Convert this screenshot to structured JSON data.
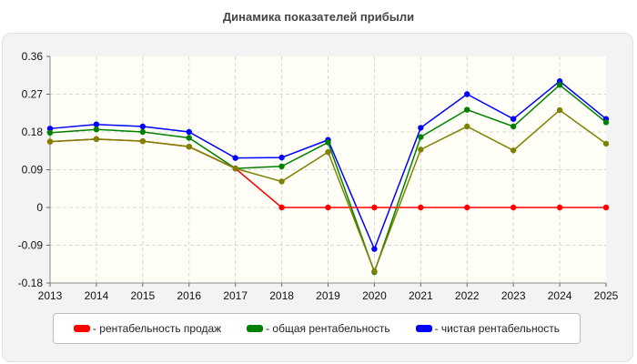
{
  "chart_data": {
    "type": "line",
    "title": "Динамика показателей прибыли",
    "x": [
      "2013",
      "2014",
      "2015",
      "2016",
      "2017",
      "2018",
      "2019",
      "2020",
      "2021",
      "2022",
      "2023",
      "2024",
      "2025"
    ],
    "ylim": [
      -0.18,
      0.36
    ],
    "yticks": [
      "0.36",
      "0.27",
      "0.18",
      "0.09",
      "0",
      "-0.09",
      "-0.18"
    ],
    "grid": true,
    "legend_placement": "bottom",
    "series": [
      {
        "name": "рентабельность продаж",
        "color": "#ff0000",
        "values": [
          0.157,
          0.163,
          0.158,
          0.145,
          0.093,
          0,
          0,
          0,
          0,
          0,
          0,
          0,
          0
        ]
      },
      {
        "name": "общая рентабельность",
        "color": "#008000",
        "values": [
          0.178,
          0.186,
          0.18,
          0.166,
          0.093,
          0.098,
          0.155,
          -0.154,
          0.168,
          0.233,
          0.193,
          0.292,
          0.203
        ]
      },
      {
        "name": "чистая рентабельность",
        "color": "#0000ff",
        "values": [
          0.188,
          0.198,
          0.193,
          0.18,
          0.118,
          0.119,
          0.161,
          -0.099,
          0.19,
          0.27,
          0.211,
          0.301,
          0.211
        ]
      }
    ],
    "overlap_series": {
      "name": "",
      "color": "#808000",
      "values": [
        0.157,
        0.163,
        0.158,
        0.145,
        0.093,
        0.062,
        0.132,
        -0.152,
        0.138,
        0.193,
        0.136,
        0.232,
        0.152
      ]
    }
  }
}
